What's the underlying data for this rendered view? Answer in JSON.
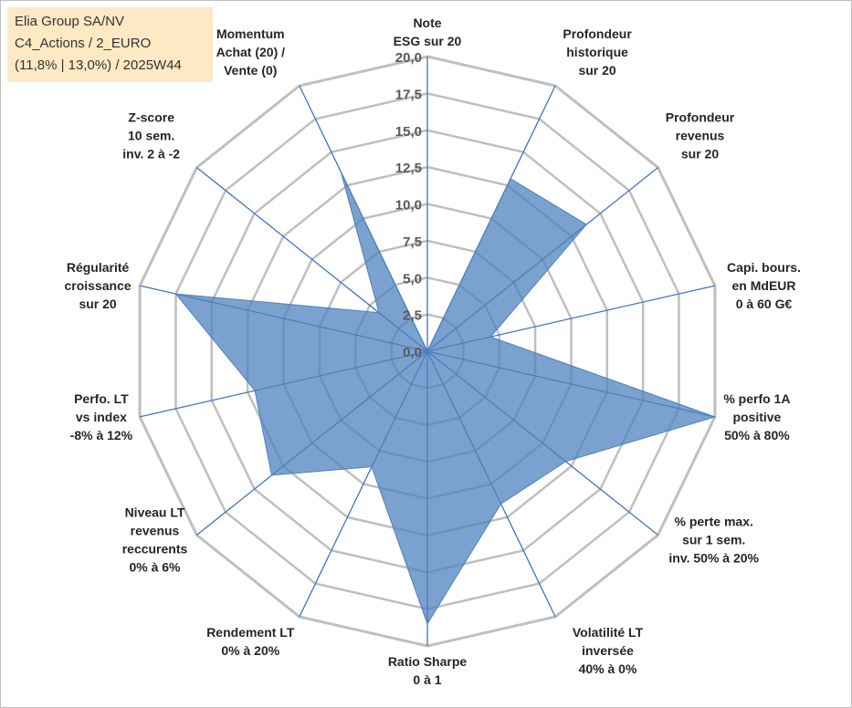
{
  "title": {
    "line1": "Elia Group SA/NV",
    "line2": "C4_Actions / 2_EURO",
    "line3": "(11,8% | 13,0%) / 2025W44"
  },
  "chart_data": {
    "type": "radar",
    "title": "Elia Group SA/NV",
    "rmin": 0,
    "rmax": 20,
    "grid_step": 2.5,
    "tick_labels": [
      "0,0",
      "2,5",
      "5,0",
      "7,5",
      "10,0",
      "12,5",
      "15,0",
      "17,5",
      "20,0"
    ],
    "axes": [
      {
        "lines": [
          "Note",
          "ESG sur 20"
        ],
        "value": 0
      },
      {
        "lines": [
          "Profondeur",
          "historique",
          "sur 20"
        ],
        "value": 13
      },
      {
        "lines": [
          "Profondeur",
          "revenus",
          "sur 20"
        ],
        "value": 13.8
      },
      {
        "lines": [
          "Capi. bours.",
          "en MdEUR",
          "0 à 60 G€"
        ],
        "value": 4.4
      },
      {
        "lines": [
          "% perfo 1A",
          "positive",
          "50% à 80%"
        ],
        "value": 20
      },
      {
        "lines": [
          "% perte max.",
          "sur 1 sem.",
          "inv. 50% à 20%"
        ],
        "value": 12
      },
      {
        "lines": [
          "Volatilité LT",
          "inversée",
          "40% à 0%"
        ],
        "value": 11.5
      },
      {
        "lines": [
          "Ratio Sharpe",
          "0 à 1"
        ],
        "value": 18.5
      },
      {
        "lines": [
          "Rendement LT",
          "0% à 20%"
        ],
        "value": 8.7
      },
      {
        "lines": [
          "Niveau LT",
          "revenus",
          "reccurents",
          "0% à 6%"
        ],
        "value": 13.5
      },
      {
        "lines": [
          "Perfo. LT",
          "vs index",
          "-8% à 12%"
        ],
        "value": 12
      },
      {
        "lines": [
          "Régularité",
          "croissance",
          "sur 20"
        ],
        "value": 17.5
      },
      {
        "lines": [
          "Z-score",
          "10 sem.",
          "inv. 2 à -2"
        ],
        "value": 4.2
      },
      {
        "lines": [
          "Momentum",
          "Achat (20) /",
          "Vente (0)"
        ],
        "value": 13.5
      }
    ],
    "colors": {
      "fill": "#4f81bd",
      "fill_opacity": 0.75,
      "axis": "#4472c4",
      "grid": "#bfbfbf"
    }
  }
}
